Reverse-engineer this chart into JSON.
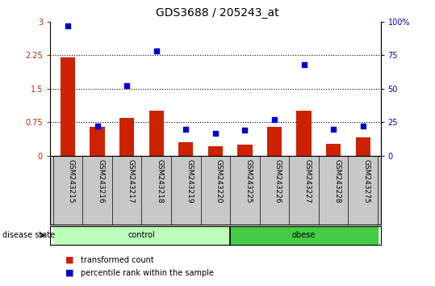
{
  "title": "GDS3688 / 205243_at",
  "categories": [
    "GSM243215",
    "GSM243216",
    "GSM243217",
    "GSM243218",
    "GSM243219",
    "GSM243220",
    "GSM243225",
    "GSM243226",
    "GSM243227",
    "GSM243228",
    "GSM243275"
  ],
  "transformed_count": [
    2.2,
    0.65,
    0.85,
    1.0,
    0.3,
    0.22,
    0.25,
    0.65,
    1.0,
    0.27,
    0.42
  ],
  "percentile_rank": [
    97,
    22,
    52,
    78,
    20,
    17,
    19,
    27,
    68,
    20,
    22
  ],
  "control_count": 6,
  "obese_count": 5,
  "bar_color": "#cc2200",
  "dot_color": "#0000cc",
  "left_ylim": [
    0,
    3
  ],
  "right_ylim": [
    0,
    100
  ],
  "left_yticks": [
    0,
    0.75,
    1.5,
    2.25,
    3
  ],
  "right_yticks": [
    0,
    25,
    50,
    75,
    100
  ],
  "left_yticklabels": [
    "0",
    "0.75",
    "1.5",
    "2.25",
    "3"
  ],
  "right_yticklabels": [
    "0",
    "25",
    "50",
    "75",
    "100%"
  ],
  "hline_values": [
    0.75,
    1.5,
    2.25
  ],
  "control_label": "control",
  "obese_label": "obese",
  "disease_state_label": "disease state",
  "legend_bar_label": "transformed count",
  "legend_dot_label": "percentile rank within the sample",
  "control_color": "#bbffbb",
  "obese_color": "#44cc44",
  "xticklabel_area_color": "#c8c8c8",
  "bar_width": 0.5,
  "title_fontsize": 10,
  "tick_fontsize": 7,
  "label_fontsize": 7,
  "legend_fontsize": 7
}
